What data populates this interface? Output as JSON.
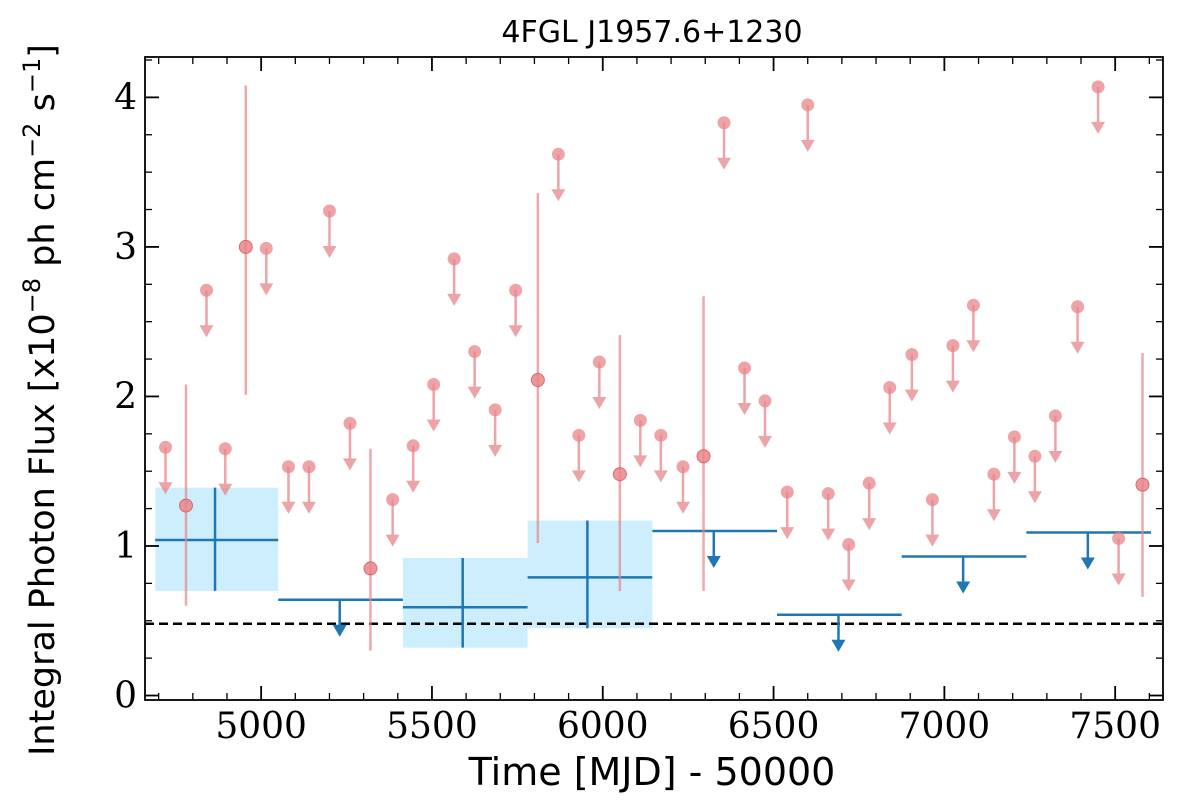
{
  "chart_data": {
    "type": "scatter",
    "title": "4FGL J1957.6+1230",
    "xlabel": "Time [MJD] - 50000",
    "ylabel": "Integral Photon Flux [x10",
    "ylabel_exp1": "−8",
    "ylabel_mid": " ph cm",
    "ylabel_exp2": "−2",
    "ylabel_mid2": " s",
    "ylabel_exp3": "−1",
    "ylabel_end": "]",
    "xlim": [
      4660,
      7640
    ],
    "ylim": [
      -0.03,
      4.27
    ],
    "xticks": [
      5000,
      5500,
      6000,
      6500,
      7000,
      7500
    ],
    "xtick_labels": [
      "5000",
      "5500",
      "6000",
      "6500",
      "7000",
      "7500"
    ],
    "yticks": [
      0,
      1,
      2,
      3,
      4
    ],
    "ytick_labels": [
      "0",
      "1",
      "2",
      "3",
      "4"
    ],
    "grid": false,
    "colors": {
      "short_bins": "#e8868a",
      "long_bins": "#1f77b4",
      "long_bins_fill": "#cdeefc",
      "reference_line": "#000000"
    },
    "reference_line": {
      "y": 0.48,
      "style": "dashed"
    },
    "short_bins": {
      "detections": [
        {
          "x": 4780,
          "y": 1.27,
          "ylo": 0.6,
          "yhi": 2.08
        },
        {
          "x": 4955,
          "y": 3.0,
          "ylo": 2.01,
          "yhi": 4.08
        },
        {
          "x": 5320,
          "y": 0.85,
          "ylo": 0.3,
          "yhi": 1.65
        },
        {
          "x": 5810,
          "y": 2.11,
          "ylo": 1.02,
          "yhi": 3.36
        },
        {
          "x": 6050,
          "y": 1.48,
          "ylo": 0.7,
          "yhi": 2.41
        },
        {
          "x": 6295,
          "y": 1.6,
          "ylo": 0.7,
          "yhi": 2.67
        },
        {
          "x": 7580,
          "y": 1.41,
          "ylo": 0.66,
          "yhi": 2.29
        }
      ],
      "upper_limits": [
        {
          "x": 4720,
          "y": 1.66
        },
        {
          "x": 4840,
          "y": 2.71
        },
        {
          "x": 4895,
          "y": 1.65
        },
        {
          "x": 5015,
          "y": 2.99
        },
        {
          "x": 5080,
          "y": 1.53
        },
        {
          "x": 5140,
          "y": 1.53
        },
        {
          "x": 5200,
          "y": 3.24
        },
        {
          "x": 5260,
          "y": 1.82
        },
        {
          "x": 5385,
          "y": 1.31
        },
        {
          "x": 5445,
          "y": 1.67
        },
        {
          "x": 5505,
          "y": 2.08
        },
        {
          "x": 5565,
          "y": 2.92
        },
        {
          "x": 5625,
          "y": 2.3
        },
        {
          "x": 5685,
          "y": 1.91
        },
        {
          "x": 5745,
          "y": 2.71
        },
        {
          "x": 5870,
          "y": 3.62
        },
        {
          "x": 5930,
          "y": 1.74
        },
        {
          "x": 5990,
          "y": 2.23
        },
        {
          "x": 6110,
          "y": 1.84
        },
        {
          "x": 6170,
          "y": 1.74
        },
        {
          "x": 6235,
          "y": 1.53
        },
        {
          "x": 6355,
          "y": 3.83
        },
        {
          "x": 6415,
          "y": 2.19
        },
        {
          "x": 6475,
          "y": 1.97
        },
        {
          "x": 6540,
          "y": 1.36
        },
        {
          "x": 6600,
          "y": 3.95
        },
        {
          "x": 6660,
          "y": 1.35
        },
        {
          "x": 6720,
          "y": 1.01
        },
        {
          "x": 6780,
          "y": 1.42
        },
        {
          "x": 6840,
          "y": 2.06
        },
        {
          "x": 6905,
          "y": 2.28
        },
        {
          "x": 6965,
          "y": 1.31
        },
        {
          "x": 7025,
          "y": 2.34
        },
        {
          "x": 7085,
          "y": 2.61
        },
        {
          "x": 7145,
          "y": 1.48
        },
        {
          "x": 7205,
          "y": 1.73
        },
        {
          "x": 7265,
          "y": 1.6
        },
        {
          "x": 7325,
          "y": 1.87
        },
        {
          "x": 7390,
          "y": 2.6
        },
        {
          "x": 7450,
          "y": 4.07
        },
        {
          "x": 7510,
          "y": 1.05
        }
      ]
    },
    "long_bins": {
      "detections": [
        {
          "x0": 4690,
          "x1": 5050,
          "x": 4865,
          "y": 1.04,
          "ylo": 0.7,
          "yhi": 1.39
        },
        {
          "x0": 5415,
          "x1": 5780,
          "x": 5590,
          "y": 0.59,
          "ylo": 0.32,
          "yhi": 0.92
        },
        {
          "x0": 5780,
          "x1": 6145,
          "x": 5955,
          "y": 0.79,
          "ylo": 0.45,
          "yhi": 1.17
        }
      ],
      "upper_limits": [
        {
          "x0": 5050,
          "x1": 5415,
          "x": 5230,
          "y": 0.64
        },
        {
          "x0": 6145,
          "x1": 6510,
          "x": 6325,
          "y": 1.1
        },
        {
          "x0": 6510,
          "x1": 6875,
          "x": 6690,
          "y": 0.54
        },
        {
          "x0": 6875,
          "x1": 7240,
          "x": 7055,
          "y": 0.93
        },
        {
          "x0": 7240,
          "x1": 7605,
          "x": 7420,
          "y": 1.09
        }
      ]
    }
  }
}
